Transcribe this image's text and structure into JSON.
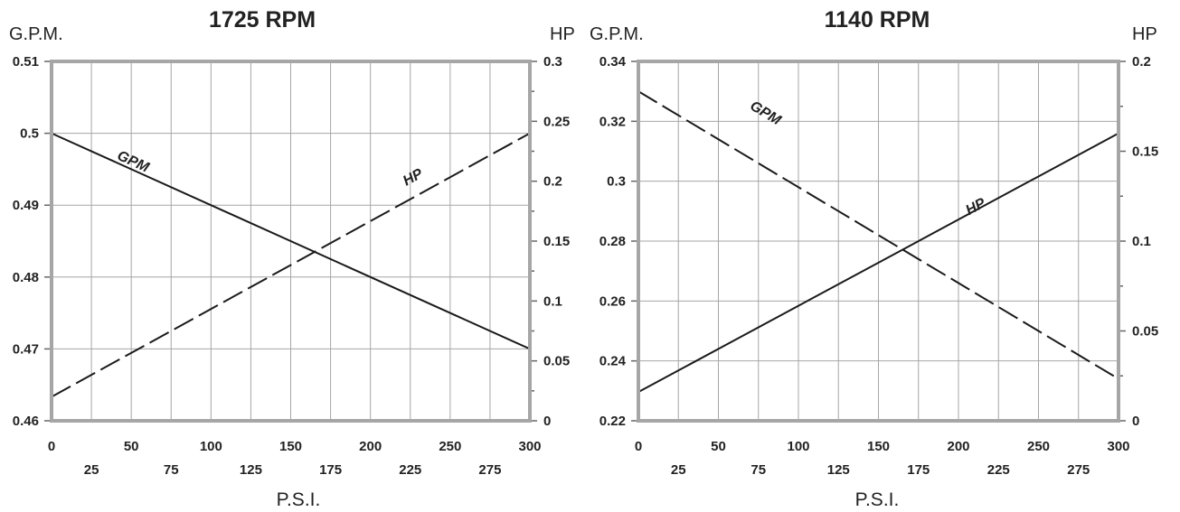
{
  "chart_data": [
    {
      "type": "line",
      "title": "1725 RPM",
      "left_unit": "G.P.M.",
      "right_unit": "HP",
      "xlabel": "P.S.I.",
      "xlim": [
        0,
        300
      ],
      "x_ticks_major": [
        "0",
        "50",
        "100",
        "150",
        "200",
        "250",
        "300"
      ],
      "x_ticks_minor": [
        "25",
        "75",
        "125",
        "175",
        "225",
        "275"
      ],
      "y_left_lim": [
        0.46,
        0.51
      ],
      "y_left_ticks": [
        "0.46",
        "0.47",
        "0.48",
        "0.49",
        "0.5",
        "0.51"
      ],
      "y_right_lim": [
        0,
        0.3
      ],
      "y_right_ticks": [
        "0",
        "0.05",
        "0.1",
        "0.15",
        "0.2",
        "0.25",
        "0.3"
      ],
      "grid": true,
      "series": [
        {
          "name": "GPM",
          "axis": "left",
          "style": "solid",
          "x": [
            0,
            300
          ],
          "y": [
            0.5,
            0.47
          ],
          "label_at": [
            50,
            0.4955
          ]
        },
        {
          "name": "HP",
          "axis": "right",
          "style": "dashed",
          "x": [
            0,
            300
          ],
          "y": [
            0.02,
            0.24
          ],
          "label_at": [
            228,
            0.2
          ]
        }
      ]
    },
    {
      "type": "line",
      "title": "1140 RPM",
      "left_unit": "G.P.M.",
      "right_unit": "HP",
      "xlabel": "P.S.I.",
      "xlim": [
        0,
        300
      ],
      "x_ticks_major": [
        "0",
        "50",
        "100",
        "150",
        "200",
        "250",
        "300"
      ],
      "x_ticks_minor": [
        "25",
        "75",
        "125",
        "175",
        "225",
        "275"
      ],
      "y_left_lim": [
        0.22,
        0.34
      ],
      "y_left_ticks": [
        "0.22",
        "0.24",
        "0.26",
        "0.28",
        "0.3",
        "0.32",
        "0.34"
      ],
      "y_right_lim": [
        0,
        0.2
      ],
      "y_right_ticks": [
        "0",
        "0.05",
        "0.1",
        "0.15",
        "0.2"
      ],
      "grid": true,
      "series": [
        {
          "name": "GPM",
          "axis": "left",
          "style": "dashed",
          "x": [
            0,
            300
          ],
          "y": [
            0.33,
            0.234
          ],
          "label_at": [
            78,
            0.3215
          ]
        },
        {
          "name": "HP",
          "axis": "right",
          "style": "solid",
          "x": [
            0,
            300
          ],
          "y": [
            0.016,
            0.16
          ],
          "label_at": [
            212,
            0.117
          ]
        }
      ]
    }
  ]
}
